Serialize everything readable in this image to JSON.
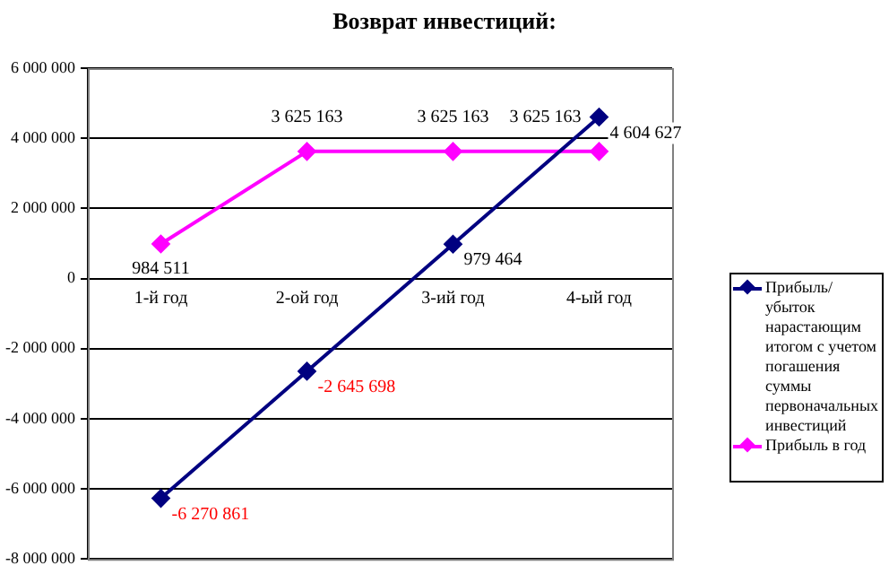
{
  "chart_data": {
    "type": "line",
    "title": "Возврат инвестиций:",
    "categories": [
      "1-й год",
      "2-ой год",
      "3-ий год",
      "4-ый год"
    ],
    "series": [
      {
        "name": "Прибыль/убыток нарастающим итогом с учетом погашения суммы первоначальных инвестиций",
        "color": "#000080",
        "values": [
          -6270861,
          -2645698,
          979464,
          4604627
        ],
        "value_labels": [
          "-6 270 861",
          "-2 645 698",
          "979 464",
          "4 604 627"
        ]
      },
      {
        "name": "Прибыль в год",
        "color": "#ff00ff",
        "values": [
          984511,
          3625163,
          3625163,
          3625163
        ],
        "value_labels": [
          "984 511",
          "3 625 163",
          "3 625 163",
          "3 625 163"
        ]
      }
    ],
    "ylim": [
      -8000000,
      6000000
    ],
    "yticks": [
      {
        "value": -8000000,
        "label": "-8 000 000"
      },
      {
        "value": -6000000,
        "label": "-6 000 000"
      },
      {
        "value": -4000000,
        "label": "-4 000 000"
      },
      {
        "value": -2000000,
        "label": "-2 000 000"
      },
      {
        "value": 0,
        "label": "0"
      },
      {
        "value": 2000000,
        "label": "2 000 000"
      },
      {
        "value": 4000000,
        "label": "4 000 000"
      },
      {
        "value": 6000000,
        "label": "6 000 000"
      }
    ],
    "grid": "y",
    "legend": "right",
    "marker": "diamond",
    "line_style": "solid"
  }
}
